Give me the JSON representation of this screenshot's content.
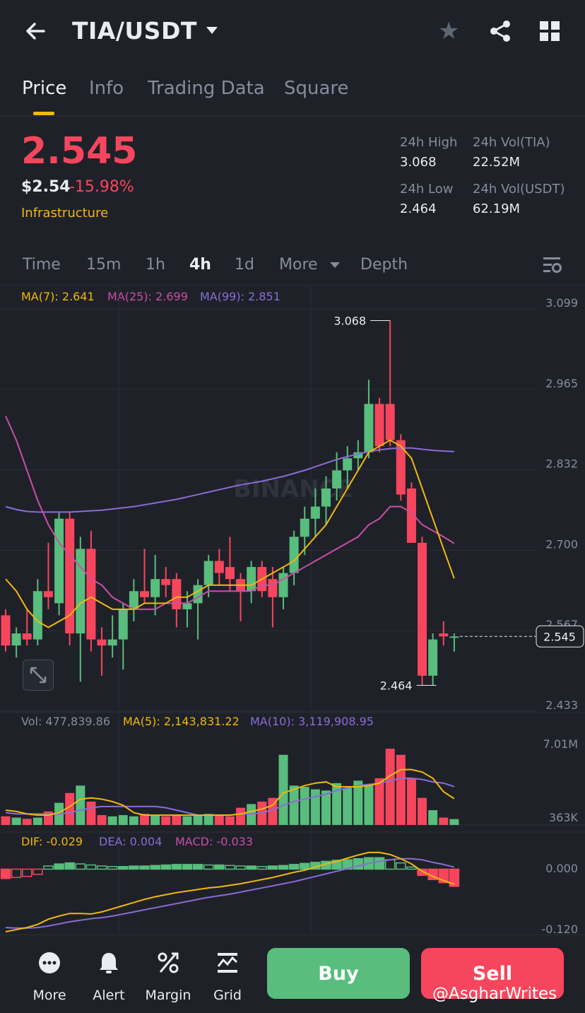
{
  "header": {
    "pair": "TIA/USDT",
    "icons": [
      "back-arrow-icon",
      "chevron-down-icon",
      "star-icon",
      "share-icon",
      "grid-icon"
    ]
  },
  "tabs": [
    {
      "label": "Price",
      "active": true
    },
    {
      "label": "Info",
      "active": false
    },
    {
      "label": "Trading Data",
      "active": false
    },
    {
      "label": "Square",
      "active": false
    }
  ],
  "ticker": {
    "price": "2.545",
    "usd": "$2.54",
    "change": "-15.98%",
    "tag": "Infrastructure",
    "stats": [
      {
        "label": "24h High",
        "value": "3.068"
      },
      {
        "label": "24h Vol(TIA)",
        "value": "22.52M"
      },
      {
        "label": "24h Low",
        "value": "2.464"
      },
      {
        "label": "24h Vol(USDT)",
        "value": "62.19M"
      }
    ]
  },
  "timeframes": [
    {
      "label": "Time",
      "active": false
    },
    {
      "label": "15m",
      "active": false
    },
    {
      "label": "1h",
      "active": false
    },
    {
      "label": "4h",
      "active": true
    },
    {
      "label": "1d",
      "active": false
    },
    {
      "label": "More",
      "active": false
    },
    {
      "label": "Depth",
      "active": false
    }
  ],
  "indicators": {
    "ma7": "MA(7): 2.641",
    "ma25": "MA(25): 2.699",
    "ma99": "MA(99): 2.851"
  },
  "price_axis": [
    "3.099",
    "2.965",
    "2.832",
    "2.700",
    "2.567",
    "2.433"
  ],
  "current_price_label": "2.545",
  "high_label": "3.068",
  "low_label": "2.464",
  "watermark_brand": "BINANCE",
  "volume": {
    "vol": "Vol: 477,839.86",
    "ma5": "MA(5): 2,143,831.22",
    "ma10": "MA(10): 3,119,908.95",
    "axis_top": "7.01M",
    "axis_bottom": "363K"
  },
  "macd": {
    "dif": "DIF: -0.029",
    "dea": "DEA: 0.004",
    "macd": "MACD: -0.033",
    "axis_top": "0.000",
    "axis_bottom": "-0.120"
  },
  "colors": {
    "up": "#58bd7d",
    "down": "#f6465d",
    "ma7": "#f0b90b",
    "ma25": "#c94fa5",
    "ma99": "#8a6cd6",
    "background": "#1f2129"
  },
  "chart_data": {
    "type": "candlestick",
    "interval": "4h",
    "ylim": [
      2.433,
      3.099
    ],
    "candles": [
      {
        "o": 2.58,
        "h": 2.59,
        "l": 2.52,
        "c": 2.53
      },
      {
        "o": 2.53,
        "h": 2.56,
        "l": 2.51,
        "c": 2.55
      },
      {
        "o": 2.55,
        "h": 2.59,
        "l": 2.53,
        "c": 2.54
      },
      {
        "o": 2.54,
        "h": 2.64,
        "l": 2.53,
        "c": 2.62
      },
      {
        "o": 2.62,
        "h": 2.7,
        "l": 2.59,
        "c": 2.61
      },
      {
        "o": 2.6,
        "h": 2.75,
        "l": 2.58,
        "c": 2.74
      },
      {
        "o": 2.74,
        "h": 2.75,
        "l": 2.53,
        "c": 2.55
      },
      {
        "o": 2.55,
        "h": 2.71,
        "l": 2.47,
        "c": 2.69
      },
      {
        "o": 2.69,
        "h": 2.72,
        "l": 2.52,
        "c": 2.54
      },
      {
        "o": 2.54,
        "h": 2.56,
        "l": 2.48,
        "c": 2.53
      },
      {
        "o": 2.53,
        "h": 2.58,
        "l": 2.51,
        "c": 2.54
      },
      {
        "o": 2.54,
        "h": 2.6,
        "l": 2.49,
        "c": 2.59
      },
      {
        "o": 2.59,
        "h": 2.64,
        "l": 2.57,
        "c": 2.62
      },
      {
        "o": 2.62,
        "h": 2.69,
        "l": 2.6,
        "c": 2.61
      },
      {
        "o": 2.61,
        "h": 2.68,
        "l": 2.58,
        "c": 2.64
      },
      {
        "o": 2.64,
        "h": 2.66,
        "l": 2.61,
        "c": 2.63
      },
      {
        "o": 2.64,
        "h": 2.65,
        "l": 2.56,
        "c": 2.59
      },
      {
        "o": 2.59,
        "h": 2.62,
        "l": 2.56,
        "c": 2.6
      },
      {
        "o": 2.6,
        "h": 2.64,
        "l": 2.54,
        "c": 2.63
      },
      {
        "o": 2.63,
        "h": 2.68,
        "l": 2.61,
        "c": 2.67
      },
      {
        "o": 2.67,
        "h": 2.69,
        "l": 2.63,
        "c": 2.65
      },
      {
        "o": 2.66,
        "h": 2.71,
        "l": 2.62,
        "c": 2.64
      },
      {
        "o": 2.64,
        "h": 2.65,
        "l": 2.57,
        "c": 2.62
      },
      {
        "o": 2.62,
        "h": 2.67,
        "l": 2.6,
        "c": 2.66
      },
      {
        "o": 2.66,
        "h": 2.67,
        "l": 2.61,
        "c": 2.62
      },
      {
        "o": 2.64,
        "h": 2.66,
        "l": 2.56,
        "c": 2.61
      },
      {
        "o": 2.61,
        "h": 2.66,
        "l": 2.59,
        "c": 2.65
      },
      {
        "o": 2.65,
        "h": 2.72,
        "l": 2.63,
        "c": 2.71
      },
      {
        "o": 2.71,
        "h": 2.76,
        "l": 2.68,
        "c": 2.74
      },
      {
        "o": 2.74,
        "h": 2.79,
        "l": 2.71,
        "c": 2.76
      },
      {
        "o": 2.76,
        "h": 2.81,
        "l": 2.73,
        "c": 2.79
      },
      {
        "o": 2.79,
        "h": 2.85,
        "l": 2.77,
        "c": 2.82
      },
      {
        "o": 2.82,
        "h": 2.86,
        "l": 2.79,
        "c": 2.84
      },
      {
        "o": 2.84,
        "h": 2.87,
        "l": 2.82,
        "c": 2.85
      },
      {
        "o": 2.85,
        "h": 2.97,
        "l": 2.84,
        "c": 2.93
      },
      {
        "o": 2.93,
        "h": 2.94,
        "l": 2.85,
        "c": 2.86
      },
      {
        "o": 2.93,
        "h": 3.068,
        "l": 2.86,
        "c": 2.87
      },
      {
        "o": 2.87,
        "h": 2.88,
        "l": 2.77,
        "c": 2.78
      },
      {
        "o": 2.79,
        "h": 2.8,
        "l": 2.7,
        "c": 2.7
      },
      {
        "o": 2.7,
        "h": 2.71,
        "l": 2.464,
        "c": 2.48
      },
      {
        "o": 2.48,
        "h": 2.55,
        "l": 2.464,
        "c": 2.54
      },
      {
        "o": 2.55,
        "h": 2.57,
        "l": 2.53,
        "c": 2.545
      },
      {
        "o": 2.545,
        "h": 2.55,
        "l": 2.52,
        "c": 2.545
      }
    ],
    "ma7": [
      2.64,
      2.62,
      2.59,
      2.57,
      2.56,
      2.57,
      2.58,
      2.6,
      2.61,
      2.6,
      2.59,
      2.59,
      2.59,
      2.6,
      2.6,
      2.6,
      2.61,
      2.61,
      2.62,
      2.63,
      2.63,
      2.63,
      2.63,
      2.63,
      2.64,
      2.65,
      2.66,
      2.67,
      2.69,
      2.71,
      2.73,
      2.76,
      2.79,
      2.82,
      2.85,
      2.86,
      2.87,
      2.86,
      2.84,
      2.79,
      2.74,
      2.69,
      2.641
    ],
    "ma25": [
      2.91,
      2.87,
      2.82,
      2.77,
      2.73,
      2.7,
      2.68,
      2.66,
      2.64,
      2.63,
      2.61,
      2.6,
      2.59,
      2.59,
      2.59,
      2.6,
      2.6,
      2.6,
      2.61,
      2.62,
      2.62,
      2.62,
      2.62,
      2.62,
      2.63,
      2.63,
      2.64,
      2.65,
      2.66,
      2.67,
      2.68,
      2.69,
      2.7,
      2.71,
      2.73,
      2.74,
      2.76,
      2.76,
      2.75,
      2.73,
      2.72,
      2.71,
      2.699
    ],
    "ma99": [
      2.76,
      2.755,
      2.752,
      2.751,
      2.751,
      2.751,
      2.751,
      2.752,
      2.753,
      2.754,
      2.756,
      2.758,
      2.76,
      2.763,
      2.766,
      2.769,
      2.772,
      2.776,
      2.78,
      2.784,
      2.788,
      2.792,
      2.796,
      2.799,
      2.802,
      2.806,
      2.81,
      2.815,
      2.82,
      2.826,
      2.832,
      2.838,
      2.843,
      2.847,
      2.851,
      2.854,
      2.856,
      2.857,
      2.857,
      2.855,
      2.853,
      2.852,
      2.851
    ],
    "volume": {
      "ylim": [
        0,
        7.01
      ],
      "values": [
        0.7,
        0.6,
        0.5,
        0.6,
        1.1,
        1.8,
        2.6,
        3.2,
        1.9,
        0.8,
        0.7,
        0.8,
        0.7,
        0.9,
        0.8,
        0.7,
        0.8,
        0.7,
        0.8,
        0.9,
        0.8,
        0.7,
        1.4,
        1.7,
        1.9,
        2.2,
        5.7,
        3.2,
        3.1,
        2.9,
        2.8,
        3.4,
        3.0,
        3.6,
        3.2,
        3.8,
        6.2,
        5.7,
        3.8,
        2.2,
        1.2,
        0.6,
        0.48
      ],
      "ma5": [
        1.2,
        1.1,
        0.9,
        0.8,
        0.8,
        1.0,
        1.5,
        2.1,
        2.2,
        2.1,
        1.9,
        1.6,
        1.0,
        0.8,
        0.8,
        0.8,
        0.8,
        0.8,
        0.8,
        0.8,
        0.8,
        0.8,
        0.9,
        1.1,
        1.3,
        1.6,
        2.6,
        2.9,
        3.2,
        3.4,
        3.5,
        3.1,
        3.1,
        3.1,
        3.2,
        3.4,
        4.0,
        4.5,
        4.5,
        4.3,
        3.8,
        2.7,
        2.14
      ],
      "ma10": [
        1.0,
        0.9,
        0.9,
        0.9,
        0.9,
        0.9,
        1.0,
        1.2,
        1.4,
        1.5,
        1.5,
        1.5,
        1.5,
        1.5,
        1.5,
        1.4,
        1.2,
        1.0,
        0.8,
        0.8,
        0.8,
        0.8,
        0.9,
        0.9,
        1.0,
        1.2,
        1.6,
        1.9,
        2.1,
        2.3,
        2.5,
        2.8,
        3.0,
        3.2,
        3.3,
        3.4,
        3.6,
        3.8,
        3.8,
        3.7,
        3.5,
        3.4,
        3.12
      ]
    },
    "macd": {
      "ylim": [
        -0.12,
        0.04
      ],
      "hist": [
        -0.018,
        -0.016,
        -0.014,
        -0.01,
        0.006,
        0.01,
        0.012,
        0.01,
        0.008,
        0.006,
        0.005,
        0.005,
        0.006,
        0.006,
        0.007,
        0.008,
        0.009,
        0.009,
        0.009,
        0.008,
        0.008,
        0.007,
        0.006,
        0.006,
        0.005,
        0.006,
        0.007,
        0.009,
        0.011,
        0.013,
        0.015,
        0.017,
        0.018,
        0.02,
        0.022,
        0.022,
        0.018,
        0.012,
        0.004,
        -0.012,
        -0.02,
        -0.026,
        -0.033
      ],
      "dif": [
        -0.12,
        -0.116,
        -0.112,
        -0.106,
        -0.096,
        -0.09,
        -0.085,
        -0.085,
        -0.086,
        -0.082,
        -0.076,
        -0.07,
        -0.064,
        -0.058,
        -0.053,
        -0.049,
        -0.045,
        -0.042,
        -0.039,
        -0.036,
        -0.034,
        -0.031,
        -0.028,
        -0.024,
        -0.02,
        -0.016,
        -0.011,
        -0.006,
        -0.002,
        0.004,
        0.01,
        0.015,
        0.021,
        0.027,
        0.032,
        0.032,
        0.028,
        0.02,
        0.01,
        -0.004,
        -0.014,
        -0.022,
        -0.029
      ],
      "dea": [
        -0.112,
        -0.113,
        -0.113,
        -0.112,
        -0.109,
        -0.105,
        -0.101,
        -0.098,
        -0.095,
        -0.093,
        -0.09,
        -0.086,
        -0.082,
        -0.078,
        -0.074,
        -0.07,
        -0.066,
        -0.062,
        -0.058,
        -0.054,
        -0.051,
        -0.048,
        -0.044,
        -0.04,
        -0.036,
        -0.032,
        -0.028,
        -0.024,
        -0.019,
        -0.014,
        -0.009,
        -0.004,
        0.001,
        0.006,
        0.011,
        0.015,
        0.018,
        0.02,
        0.02,
        0.018,
        0.013,
        0.009,
        0.004
      ]
    }
  },
  "bottom_nav": [
    {
      "label": "More",
      "icon": "more-dots-icon"
    },
    {
      "label": "Alert",
      "icon": "bell-icon"
    },
    {
      "label": "Margin",
      "icon": "margin-percent-icon"
    },
    {
      "label": "Grid",
      "icon": "grid-trading-icon"
    }
  ],
  "actions": {
    "buy": "Buy",
    "sell": "Sell"
  },
  "watermark": "@AsgharWrites"
}
